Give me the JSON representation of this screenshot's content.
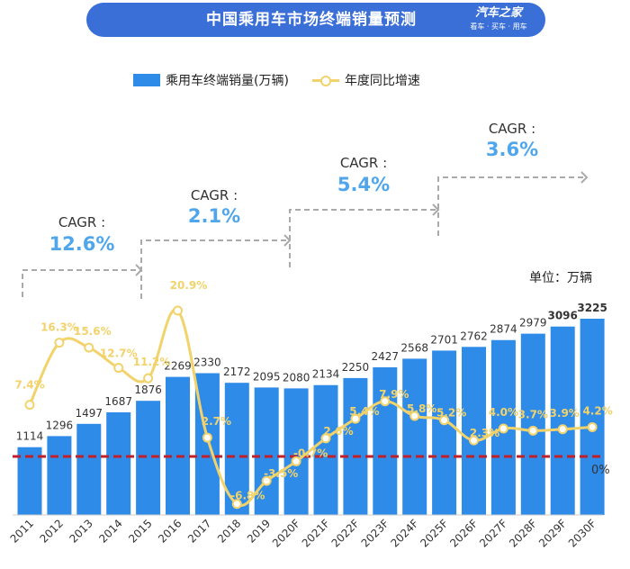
{
  "header": {
    "title": "中国乘用车市场终端销量预测",
    "logo_main": "汽车之家",
    "logo_sub": "看车 · 买车 · 用车"
  },
  "unit_label": "单位：万辆",
  "colors": {
    "banner": "#3b6fd8",
    "bar": "#2f8be8",
    "line": "#f2d36b",
    "cagr_value": "#4fa6ec",
    "zero_line": "#c0202a",
    "arrow": "#aaaaaa"
  },
  "cagr": [
    {
      "label": "CAGR :",
      "value": "12.6%"
    },
    {
      "label": "CAGR :",
      "value": "2.1%"
    },
    {
      "label": "CAGR :",
      "value": "5.4%"
    },
    {
      "label": "CAGR :",
      "value": "3.6%"
    }
  ],
  "chart_data": {
    "type": "bar",
    "categories": [
      "2011",
      "2012",
      "2013",
      "2014",
      "2015",
      "2016",
      "2017",
      "2018",
      "2019",
      "2020F",
      "2021F",
      "2022F",
      "2023F",
      "2024F",
      "2025F",
      "2026F",
      "2027F",
      "2028F",
      "2029F",
      "2030F"
    ],
    "series": [
      {
        "name": "乘用车终端销量(万辆)",
        "type": "bar",
        "values": [
          1114,
          1296,
          1497,
          1687,
          1876,
          2269,
          2330,
          2172,
          2095,
          2080,
          2134,
          2250,
          2427,
          2568,
          2701,
          2762,
          2874,
          2979,
          3096,
          3225
        ],
        "labels": [
          "1114",
          "1296",
          "1497",
          "1687",
          "1876",
          "2269",
          "2330",
          "2172",
          "2095",
          "2080",
          "2134",
          "2250",
          "2427",
          "2568",
          "2701",
          "2762",
          "2874",
          "2979",
          "3096",
          "3225"
        ]
      },
      {
        "name": "年度同比增速",
        "type": "line",
        "values": [
          7.4,
          16.3,
          15.6,
          12.7,
          11.2,
          20.9,
          2.7,
          -6.8,
          -3.5,
          -0.7,
          2.6,
          5.4,
          7.9,
          5.8,
          5.2,
          2.3,
          4.0,
          3.7,
          3.9,
          4.2
        ],
        "labels": [
          "7.4%",
          "16.3%",
          "15.6%",
          "12.7%",
          "11.2%",
          "20.9%",
          "2.7%",
          "-6.8%",
          "-3.5%",
          "-0.7%",
          "2.6%",
          "5.4%",
          "7.9%",
          "5.8%",
          "5.2%",
          "2.3%",
          "4.0%",
          "3.7%",
          "3.9%",
          "4.2%"
        ]
      }
    ],
    "zero_label": "0%"
  }
}
